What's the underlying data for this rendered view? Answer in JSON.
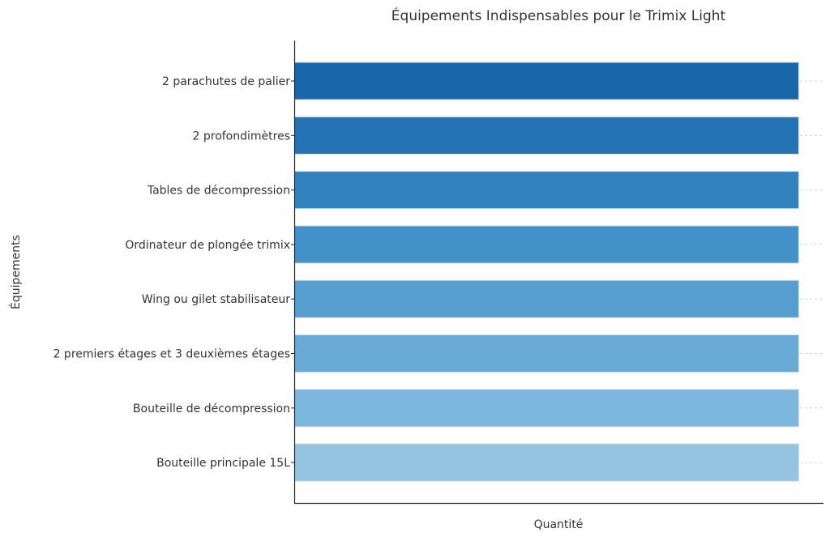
{
  "chart_data": {
    "type": "bar",
    "orientation": "horizontal",
    "title": "Équipements Indispensables pour le Trimix Light",
    "xlabel": "Quantité",
    "ylabel": "Équipements",
    "categories": [
      "2 parachutes de palier",
      "2 profondimètres",
      "Tables de décompression",
      "Ordinateur de plongée trimix",
      "Wing ou gilet stabilisateur",
      "2 premiers étages et 3 deuxièmes étages",
      "Bouteille de décompression",
      "Bouteille principale 15L"
    ],
    "values": [
      1,
      1,
      1,
      1,
      1,
      1,
      1,
      1
    ],
    "xlim": [
      0,
      1.05
    ],
    "x_ticks_shown": false,
    "grid": "horizontal dashed",
    "legend": "none",
    "colors": [
      "#1a66ab",
      "#2373b5",
      "#3282be",
      "#4291c8",
      "#559ecf",
      "#68aad5",
      "#7cb7dd",
      "#95c4e2"
    ],
    "bar_edge_color": "#cfd8e0"
  }
}
